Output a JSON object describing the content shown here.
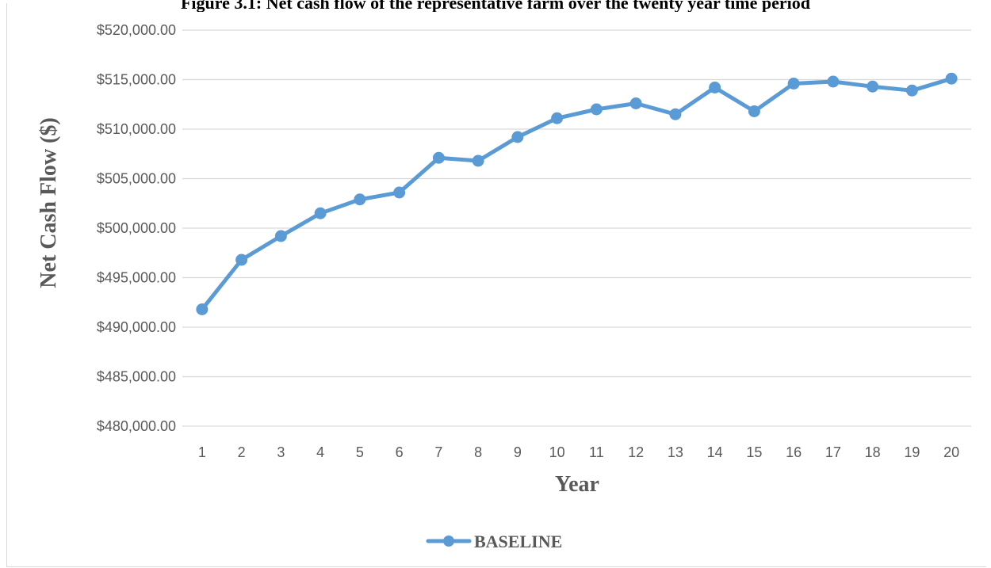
{
  "figure_caption": "Figure 3.1: Net cash flow of the representative farm over the twenty year time period",
  "chart_data": {
    "type": "line",
    "title": "",
    "xlabel": "Year",
    "ylabel": "Net Cash Flow ($)",
    "categories": [
      "1",
      "2",
      "3",
      "4",
      "5",
      "6",
      "7",
      "8",
      "9",
      "10",
      "11",
      "12",
      "13",
      "14",
      "15",
      "16",
      "17",
      "18",
      "19",
      "20"
    ],
    "ylim": [
      480000,
      520000
    ],
    "y_ticks": [
      480000,
      485000,
      490000,
      495000,
      500000,
      505000,
      510000,
      515000,
      520000
    ],
    "y_tick_labels": [
      "$480,000.00",
      "$485,000.00",
      "$490,000.00",
      "$495,000.00",
      "$500,000.00",
      "$505,000.00",
      "$510,000.00",
      "$515,000.00",
      "$520,000.00"
    ],
    "grid": true,
    "legend_position": "bottom",
    "series": [
      {
        "name": "BASELINE",
        "color": "#5b9bd5",
        "marker": "circle",
        "values": [
          491800,
          496800,
          499200,
          501500,
          502900,
          503600,
          507100,
          506800,
          509200,
          511100,
          512000,
          512600,
          511500,
          514200,
          511800,
          514600,
          514800,
          514300,
          513900,
          515100
        ]
      }
    ]
  }
}
